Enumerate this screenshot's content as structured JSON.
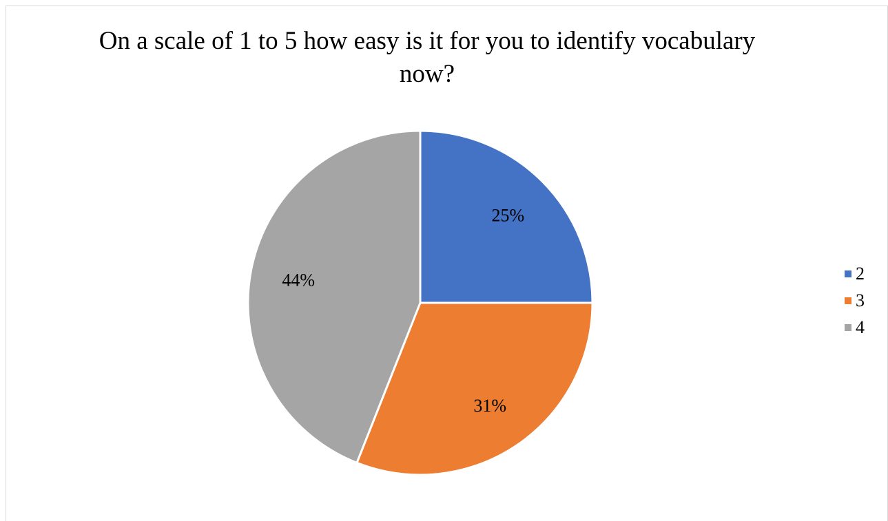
{
  "chart_data": {
    "type": "pie",
    "title": "On a scale of 1 to 5 how easy is it for you to identify vocabulary now?",
    "categories": [
      "2",
      "3",
      "4"
    ],
    "values": [
      25,
      31,
      44
    ],
    "labels": [
      "25%",
      "31%",
      "44%"
    ],
    "colors": [
      "#4472C4",
      "#ED7D31",
      "#A5A5A5"
    ],
    "legend_position": "right"
  }
}
